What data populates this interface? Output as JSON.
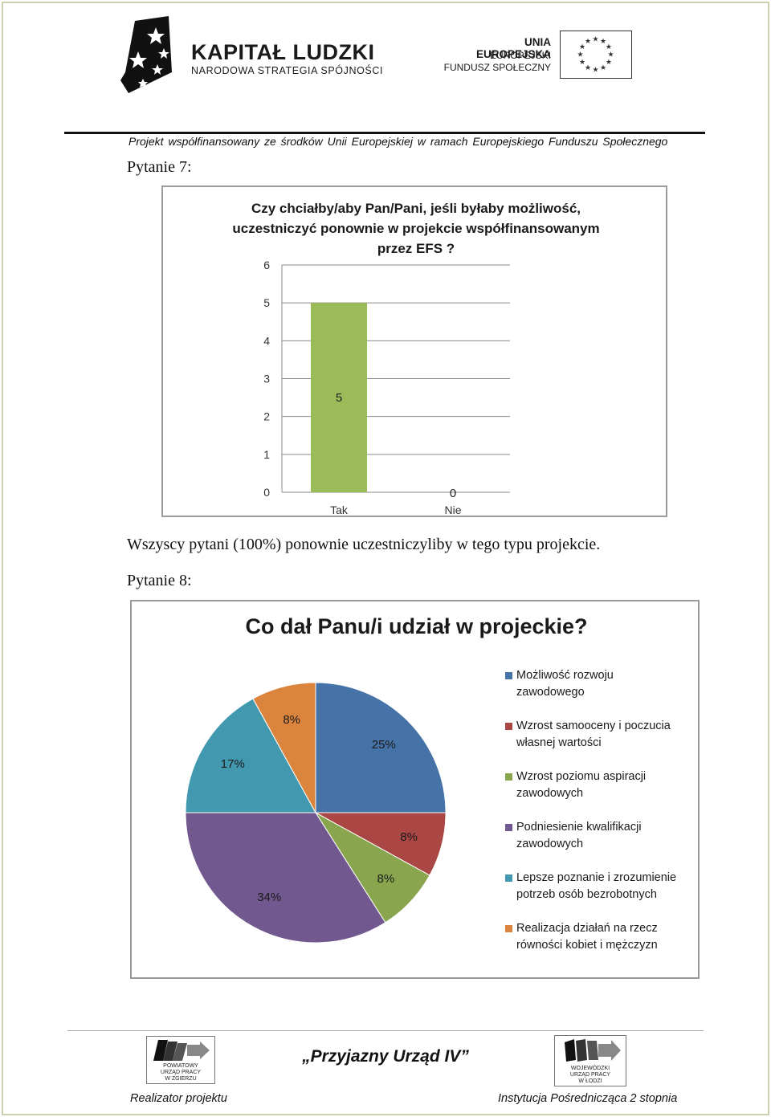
{
  "header": {
    "kl_title": "KAPITAŁ LUDZKI",
    "kl_subtitle": "NARODOWA STRATEGIA SPÓJNOŚCI",
    "ue_line1": "UNIA EUROPEJSKA",
    "ue_line2": "EUROPEJSKI",
    "ue_line3": "FUNDUSZ SPOŁECZNY",
    "caption": "Projekt współfinansowany ze środków Unii Europejskiej w ramach Europejskiego Funduszu Społecznego"
  },
  "question7": {
    "label": "Pytanie 7:",
    "summary": "Wszyscy pytani (100%)  ponownie uczestniczyliby w tego typu projekcie."
  },
  "question8": {
    "label": "Pytanie 8:"
  },
  "chart_data": [
    {
      "type": "bar",
      "title_lines": [
        "Czy chciałby/aby Pan/Pani, jeśli byłaby możliwość,",
        "uczestniczyć ponownie w projekcie współfinansowanym",
        "przez EFS ?"
      ],
      "categories": [
        "Tak",
        "Nie"
      ],
      "values": [
        5,
        0
      ],
      "data_labels": [
        "5",
        "0"
      ],
      "yticks": [
        "0",
        "1",
        "2",
        "3",
        "4",
        "5",
        "6"
      ],
      "ylim": [
        0,
        6
      ],
      "grid": true,
      "bar_color": "#9bbb59"
    },
    {
      "type": "pie",
      "title": "Co dał Panu/i udział w projeckie?",
      "legend_position": "right",
      "slices": [
        {
          "label_lines": [
            "Możliwość rozwoju",
            "zawodowego"
          ],
          "value": 25,
          "data_label": "25%",
          "color": "#4572a7"
        },
        {
          "label_lines": [
            "Wzrost samooceny i poczucia",
            "własnej wartości"
          ],
          "value": 8,
          "data_label": "8%",
          "color": "#aa4643"
        },
        {
          "label_lines": [
            "Wzrost poziomu aspiracji",
            "zawodowych"
          ],
          "value": 8,
          "data_label": "8%",
          "color": "#89a54e"
        },
        {
          "label_lines": [
            "Podniesienie kwalifikacji",
            "zawodowych"
          ],
          "value": 34,
          "data_label": "34%",
          "color": "#71588f"
        },
        {
          "label_lines": [
            "Lepsze poznanie i zrozumienie",
            "potrzeb osób bezrobotnych"
          ],
          "value": 17,
          "data_label": "17%",
          "color": "#4198af"
        },
        {
          "label_lines": [
            "Realizacja działań na rzecz",
            "równości kobiet i mężczyzn"
          ],
          "value": 8,
          "data_label": "8%",
          "color": "#db843d"
        }
      ]
    }
  ],
  "footer": {
    "pup_logo_text": [
      "POWIATOWY",
      "URZĄD PRACY",
      "W ZGIERZU"
    ],
    "wup_logo_text": [
      "WOJEWÓDZKI",
      "URZĄD PRACY",
      "W ŁODZI"
    ],
    "slogan": "„Przyjazny Urząd IV”",
    "left_caption": "Realizator projektu",
    "right_caption": "Instytucja Pośrednicząca 2 stopnia"
  }
}
